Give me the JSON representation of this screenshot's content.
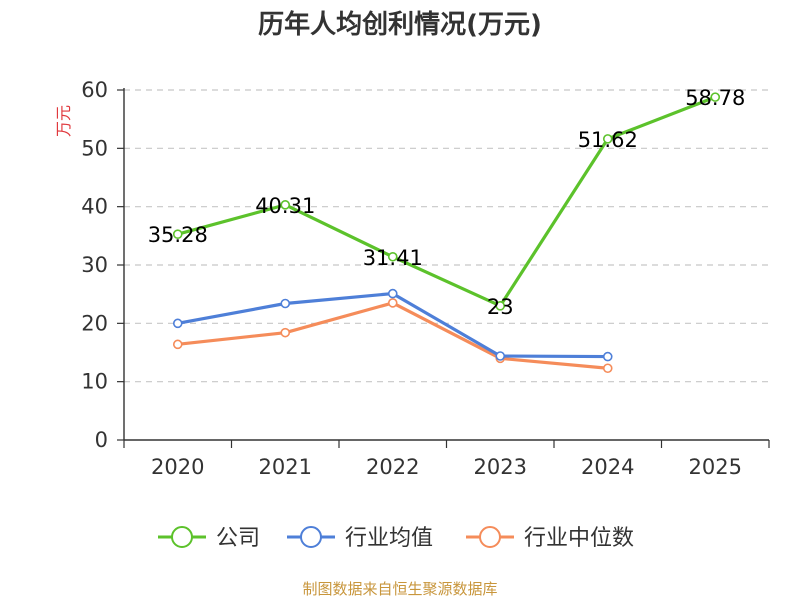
{
  "chart_data": {
    "type": "line",
    "title": "历年人均创利情况(万元)",
    "ylabel": "万元",
    "xlabel": "",
    "categories": [
      "2020",
      "2021",
      "2022",
      "2023",
      "2024",
      "2025"
    ],
    "ylim": [
      0,
      60
    ],
    "yticks": [
      0,
      10,
      20,
      30,
      40,
      50,
      60
    ],
    "grid": true,
    "legend_position": "bottom",
    "series": [
      {
        "name": "公司",
        "color": "#5cc22b",
        "values": [
          35.28,
          40.31,
          31.41,
          23,
          51.62,
          58.78
        ],
        "labels": [
          "35.28",
          "40.31",
          "31.41",
          "23",
          "51.62",
          "58.78"
        ]
      },
      {
        "name": "行业均值",
        "color": "#4e7fd8",
        "values": [
          20.0,
          23.4,
          25.1,
          14.4,
          14.3,
          null
        ]
      },
      {
        "name": "行业中位数",
        "color": "#f58c5a",
        "values": [
          16.4,
          18.4,
          23.5,
          14.0,
          12.3,
          null
        ]
      }
    ]
  },
  "footer": {
    "source": "制图数据来自恒生聚源数据库"
  }
}
